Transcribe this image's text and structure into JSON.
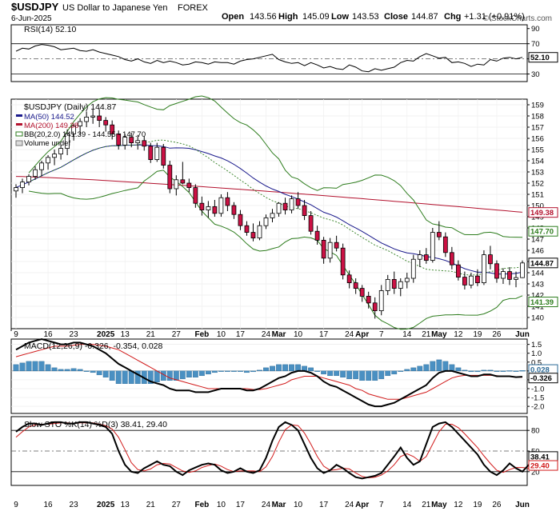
{
  "header": {
    "symbol": "$USDJPY",
    "name": "US Dollar to Japanese Yen",
    "exchange": "FOREX",
    "date": "6-Jun-2025",
    "open_label": "Open",
    "open": "143.56",
    "high_label": "High",
    "high": "145.09",
    "low_label": "Low",
    "low": "143.53",
    "close_label": "Close",
    "close": "144.87",
    "chg_label": "Chg",
    "chg": "+1.31 (+0.91%)",
    "watermark": "© StockCharts.com"
  },
  "colors": {
    "up_candle": "#000000",
    "down_candle": "#cc1144",
    "ma50": "#1a1a8c",
    "ma200": "#b3122e",
    "bb": "#2e7d1e",
    "macd_hist": "#4a90c2",
    "signal": "#d11a1a"
  },
  "chart_data": [
    {
      "type": "line",
      "panel": "RSI",
      "label": "RSI(14) 52.10",
      "ylim": [
        20,
        95
      ],
      "yticks": [
        "90",
        "70",
        "50",
        "30"
      ],
      "levels": [
        70,
        30
      ],
      "last_value": "52.10",
      "series": [
        {
          "name": "RSI(14)",
          "values": [
            60,
            64,
            63,
            67,
            69,
            68,
            66,
            62,
            63,
            64,
            61,
            60,
            62,
            59,
            57,
            55,
            53,
            49,
            47,
            50,
            46,
            44,
            48,
            45,
            47,
            45,
            42,
            43,
            46,
            45,
            43,
            46,
            45,
            45,
            43,
            47,
            49,
            50,
            52,
            54,
            56,
            49,
            46,
            44,
            45,
            41,
            45,
            42,
            38,
            40,
            37,
            36,
            42,
            39,
            34,
            33,
            37,
            35,
            37,
            39,
            45,
            48,
            47,
            53,
            57,
            54,
            51,
            52,
            45,
            46,
            44,
            40,
            43,
            42,
            49,
            47,
            51,
            52,
            50,
            52
          ]
        }
      ]
    },
    {
      "type": "candlestick",
      "panel": "Price",
      "title": "$USDJPY (Daily) 144.87",
      "ylim": [
        139,
        159.5
      ],
      "yticks": [
        "159",
        "158",
        "157",
        "156",
        "155",
        "154",
        "153",
        "152",
        "151",
        "150",
        "149",
        "148",
        "147",
        "146",
        "145",
        "144",
        "143",
        "142",
        "141",
        "140"
      ],
      "legend": [
        "MA(50) 144.52",
        "MA(200) 149.38",
        "BB(20,2.0) 141.39 - 144.55 - 147.70",
        "Volume undef"
      ],
      "x_labels": [
        "9",
        "16",
        "23",
        "2025",
        "13",
        "21",
        "27",
        "Feb",
        "10",
        "17",
        "24",
        "Mar",
        "10",
        "17",
        "24",
        "Apr",
        "7",
        "14",
        "21",
        "May",
        "12",
        "19",
        "26",
        "Jun"
      ],
      "right_labels": [
        "149.38",
        "147.70",
        "144.87",
        "141.39"
      ],
      "candles": [
        [
          151.3,
          151.9,
          150.7,
          151.6
        ],
        [
          151.6,
          152.4,
          151.1,
          152.1
        ],
        [
          152.1,
          152.8,
          151.8,
          152.6
        ],
        [
          152.6,
          153.5,
          152.3,
          153.2
        ],
        [
          153.2,
          154.0,
          152.6,
          153.8
        ],
        [
          153.8,
          154.5,
          153.2,
          154.3
        ],
        [
          154.3,
          155.0,
          153.6,
          154.6
        ],
        [
          154.6,
          155.4,
          154.1,
          155.1
        ],
        [
          155.1,
          156.8,
          154.5,
          156.4
        ],
        [
          156.4,
          157.3,
          155.8,
          157.1
        ],
        [
          157.1,
          157.8,
          156.3,
          157.5
        ],
        [
          157.5,
          158.4,
          157.0,
          157.9
        ],
        [
          157.9,
          158.6,
          157.3,
          158.0
        ],
        [
          158.0,
          158.6,
          157.0,
          157.6
        ],
        [
          157.6,
          157.9,
          156.6,
          157.2
        ],
        [
          157.2,
          157.6,
          155.9,
          156.4
        ],
        [
          156.4,
          156.7,
          155.0,
          155.4
        ],
        [
          155.4,
          156.4,
          155.0,
          156.1
        ],
        [
          156.1,
          156.5,
          155.2,
          155.6
        ],
        [
          155.6,
          156.3,
          155.0,
          155.8
        ],
        [
          155.8,
          156.2,
          154.9,
          155.3
        ],
        [
          155.3,
          155.6,
          153.8,
          154.1
        ],
        [
          154.1,
          155.6,
          153.9,
          155.2
        ],
        [
          155.2,
          155.5,
          153.3,
          153.6
        ],
        [
          153.6,
          154.0,
          151.1,
          151.5
        ],
        [
          151.5,
          152.7,
          150.9,
          152.3
        ],
        [
          152.3,
          153.9,
          151.9,
          152.0
        ],
        [
          152.0,
          152.4,
          151.2,
          151.6
        ],
        [
          151.6,
          151.9,
          149.8,
          150.2
        ],
        [
          150.2,
          150.8,
          149.1,
          149.6
        ],
        [
          149.6,
          150.4,
          148.9,
          149.9
        ],
        [
          149.9,
          150.5,
          149.0,
          149.3
        ],
        [
          149.3,
          151.0,
          149.0,
          150.7
        ],
        [
          150.7,
          151.2,
          149.5,
          150.0
        ],
        [
          150.0,
          150.3,
          148.8,
          149.2
        ],
        [
          149.2,
          149.6,
          147.8,
          148.2
        ],
        [
          148.2,
          148.6,
          147.3,
          147.6
        ],
        [
          147.6,
          148.4,
          146.8,
          147.1
        ],
        [
          147.1,
          148.6,
          146.9,
          148.2
        ],
        [
          148.2,
          149.2,
          147.9,
          148.9
        ],
        [
          148.9,
          149.7,
          148.5,
          149.3
        ],
        [
          149.3,
          150.3,
          149.0,
          150.2
        ],
        [
          150.2,
          150.7,
          149.2,
          149.6
        ],
        [
          149.6,
          150.9,
          149.3,
          150.6
        ],
        [
          150.6,
          151.2,
          149.7,
          150.0
        ],
        [
          150.0,
          150.5,
          148.7,
          149.1
        ],
        [
          149.1,
          149.5,
          147.4,
          147.7
        ],
        [
          147.7,
          148.2,
          146.5,
          146.9
        ],
        [
          146.9,
          147.2,
          144.8,
          145.3
        ],
        [
          145.3,
          147.1,
          144.9,
          146.7
        ],
        [
          146.7,
          147.3,
          145.9,
          146.2
        ],
        [
          146.2,
          146.6,
          143.4,
          143.8
        ],
        [
          143.8,
          144.2,
          142.6,
          143.1
        ],
        [
          143.1,
          143.5,
          142.1,
          142.6
        ],
        [
          142.6,
          142.9,
          141.4,
          141.9
        ],
        [
          141.9,
          142.3,
          140.8,
          141.3
        ],
        [
          141.3,
          141.8,
          139.9,
          140.6
        ],
        [
          140.6,
          142.9,
          140.2,
          142.4
        ],
        [
          142.4,
          143.8,
          142.0,
          143.4
        ],
        [
          143.4,
          144.1,
          142.1,
          142.6
        ],
        [
          142.6,
          143.5,
          141.9,
          143.2
        ],
        [
          143.2,
          144.0,
          142.6,
          143.5
        ],
        [
          143.5,
          145.6,
          143.1,
          145.2
        ],
        [
          145.2,
          146.0,
          144.5,
          145.6
        ],
        [
          145.6,
          146.2,
          144.8,
          145.1
        ],
        [
          145.1,
          148.0,
          144.9,
          147.6
        ],
        [
          147.6,
          148.6,
          146.9,
          147.2
        ],
        [
          147.2,
          147.6,
          145.4,
          145.8
        ],
        [
          145.8,
          146.3,
          144.3,
          144.7
        ],
        [
          144.7,
          145.1,
          143.3,
          143.6
        ],
        [
          143.6,
          144.1,
          142.5,
          142.9
        ],
        [
          142.9,
          144.0,
          142.6,
          143.7
        ],
        [
          143.7,
          144.3,
          142.8,
          143.1
        ],
        [
          143.1,
          146.0,
          142.9,
          145.6
        ],
        [
          145.6,
          146.4,
          144.3,
          144.8
        ],
        [
          144.8,
          145.1,
          143.1,
          143.5
        ],
        [
          143.5,
          144.4,
          143.0,
          144.1
        ],
        [
          144.1,
          144.5,
          142.9,
          143.4
        ],
        [
          143.4,
          144.1,
          142.7,
          143.56
        ],
        [
          143.56,
          145.09,
          143.53,
          144.87
        ]
      ]
    },
    {
      "type": "bar",
      "panel": "MACD",
      "label": "MACD(12,26,9) -0.326, -0.354, 0.028",
      "ylim": [
        -2.4,
        1.8
      ],
      "yticks": [
        "1.5",
        "1.0",
        "0.5",
        "0.0",
        "-0.5",
        "-1.0",
        "-1.5",
        "-2.0"
      ],
      "right_labels": [
        "0.028",
        "-0.326"
      ],
      "series": [
        {
          "name": "MACD",
          "values": [
            1.2,
            1.4,
            1.6,
            1.7,
            1.8,
            1.7,
            1.6,
            1.5,
            1.5,
            1.6,
            1.6,
            1.5,
            1.4,
            1.2,
            1.0,
            0.7,
            0.4,
            0.2,
            0.0,
            -0.2,
            -0.4,
            -0.6,
            -0.7,
            -0.8,
            -1.0,
            -1.1,
            -1.1,
            -1.1,
            -1.2,
            -1.2,
            -1.2,
            -1.1,
            -1.0,
            -1.0,
            -1.0,
            -1.0,
            -1.1,
            -1.1,
            -1.0,
            -0.8,
            -0.6,
            -0.4,
            -0.3,
            -0.1,
            0.0,
            0.0,
            -0.1,
            -0.3,
            -0.6,
            -0.8,
            -0.9,
            -1.1,
            -1.3,
            -1.5,
            -1.7,
            -1.9,
            -2.0,
            -2.0,
            -1.9,
            -1.8,
            -1.6,
            -1.4,
            -1.2,
            -1.0,
            -0.8,
            -0.4,
            -0.1,
            0.0,
            0.0,
            -0.1,
            -0.2,
            -0.3,
            -0.3,
            -0.2,
            -0.2,
            -0.3,
            -0.3,
            -0.3,
            -0.35,
            -0.326
          ]
        },
        {
          "name": "Signal",
          "values": [
            0.8,
            0.9,
            1.0,
            1.1,
            1.2,
            1.3,
            1.4,
            1.4,
            1.4,
            1.45,
            1.5,
            1.5,
            1.5,
            1.45,
            1.4,
            1.3,
            1.2,
            1.0,
            0.8,
            0.6,
            0.4,
            0.2,
            0.0,
            -0.2,
            -0.4,
            -0.5,
            -0.6,
            -0.7,
            -0.8,
            -0.9,
            -1.0,
            -1.0,
            -1.0,
            -1.0,
            -1.0,
            -1.0,
            -1.0,
            -1.05,
            -1.05,
            -1.0,
            -0.9,
            -0.8,
            -0.7,
            -0.5,
            -0.4,
            -0.3,
            -0.3,
            -0.3,
            -0.4,
            -0.5,
            -0.6,
            -0.7,
            -0.8,
            -1.0,
            -1.1,
            -1.3,
            -1.4,
            -1.5,
            -1.6,
            -1.6,
            -1.6,
            -1.5,
            -1.4,
            -1.3,
            -1.2,
            -1.0,
            -0.8,
            -0.6,
            -0.4,
            -0.3,
            -0.25,
            -0.25,
            -0.25,
            -0.25,
            -0.25,
            -0.27,
            -0.3,
            -0.32,
            -0.35,
            -0.354
          ]
        }
      ]
    },
    {
      "type": "line",
      "panel": "Stochastic",
      "label": "Slow STO %K(14) %D(3) 38.41, 29.40",
      "ylim": [
        0,
        100
      ],
      "yticks": [
        "80",
        "50",
        "20"
      ],
      "levels": [
        80,
        20
      ],
      "right_labels": [
        "38.41",
        "29.40"
      ],
      "series": [
        {
          "name": "%K",
          "values": [
            78,
            85,
            90,
            90,
            88,
            90,
            92,
            92,
            90,
            90,
            92,
            92,
            90,
            88,
            85,
            75,
            50,
            30,
            20,
            18,
            25,
            30,
            35,
            30,
            28,
            20,
            15,
            22,
            26,
            30,
            32,
            30,
            22,
            18,
            20,
            25,
            20,
            18,
            22,
            40,
            65,
            85,
            92,
            88,
            80,
            60,
            40,
            25,
            18,
            22,
            30,
            25,
            18,
            12,
            10,
            12,
            14,
            18,
            30,
            42,
            55,
            40,
            30,
            35,
            60,
            85,
            90,
            92,
            85,
            75,
            65,
            55,
            45,
            30,
            20,
            15,
            22,
            32,
            25,
            20,
            30,
            38.41
          ]
        },
        {
          "name": "%D",
          "values": [
            70,
            78,
            85,
            88,
            89,
            89,
            90,
            91,
            91,
            90,
            91,
            91,
            91,
            89,
            87,
            82,
            70,
            52,
            33,
            23,
            21,
            24,
            30,
            32,
            31,
            26,
            21,
            19,
            21,
            26,
            29,
            31,
            28,
            23,
            20,
            21,
            21,
            21,
            20,
            27,
            42,
            63,
            81,
            88,
            87,
            76,
            60,
            42,
            28,
            22,
            23,
            25,
            24,
            18,
            13,
            11,
            12,
            15,
            21,
            30,
            42,
            46,
            42,
            35,
            42,
            60,
            78,
            89,
            89,
            84,
            75,
            65,
            55,
            43,
            32,
            22,
            19,
            23,
            26,
            26,
            25,
            29.4
          ]
        }
      ]
    }
  ]
}
